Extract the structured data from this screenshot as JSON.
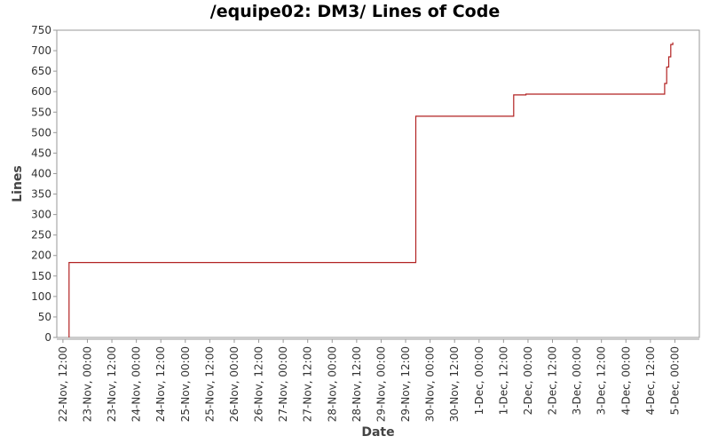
{
  "chart_data": {
    "type": "line",
    "title": "/equipe02: DM3/ Lines of Code",
    "xlabel": "Date",
    "ylabel": "Lines",
    "ylim": [
      0,
      750
    ],
    "xlim": [
      "2008-11-22 09:00",
      "2008-12-05 12:00"
    ],
    "y_ticks": [
      "0",
      "50",
      "100",
      "150",
      "200",
      "250",
      "300",
      "350",
      "400",
      "450",
      "500",
      "550",
      "600",
      "650",
      "700",
      "750"
    ],
    "x_ticks": [
      "22-Nov, 12:00",
      "23-Nov, 00:00",
      "23-Nov, 12:00",
      "24-Nov, 00:00",
      "24-Nov, 12:00",
      "25-Nov, 00:00",
      "25-Nov, 12:00",
      "26-Nov, 00:00",
      "26-Nov, 12:00",
      "27-Nov, 00:00",
      "27-Nov, 12:00",
      "28-Nov, 00:00",
      "28-Nov, 12:00",
      "29-Nov, 00:00",
      "29-Nov, 12:00",
      "30-Nov, 00:00",
      "30-Nov, 12:00",
      "1-Dec, 00:00",
      "1-Dec, 12:00",
      "2-Dec, 00:00",
      "2-Dec, 12:00",
      "3-Dec, 00:00",
      "3-Dec, 12:00",
      "4-Dec, 00:00",
      "4-Dec, 12:00",
      "5-Dec, 00:00"
    ],
    "series": [
      {
        "color": "#b22222",
        "step": true,
        "points": [
          [
            "2008-11-22 15:00",
            0
          ],
          [
            "2008-11-22 15:00",
            183
          ],
          [
            "2008-11-29 17:00",
            183
          ],
          [
            "2008-11-29 17:00",
            540
          ],
          [
            "2008-12-01 17:00",
            540
          ],
          [
            "2008-12-01 17:00",
            592
          ],
          [
            "2008-12-01 23:00",
            592
          ],
          [
            "2008-12-01 23:00",
            594
          ],
          [
            "2008-12-04 19:00",
            594
          ],
          [
            "2008-12-04 19:00",
            620
          ],
          [
            "2008-12-04 20:00",
            620
          ],
          [
            "2008-12-04 20:00",
            660
          ],
          [
            "2008-12-04 21:00",
            660
          ],
          [
            "2008-12-04 21:00",
            685
          ],
          [
            "2008-12-04 22:00",
            685
          ],
          [
            "2008-12-04 22:00",
            715
          ],
          [
            "2008-12-04 23:00",
            715
          ],
          [
            "2008-12-04 23:00",
            720
          ]
        ]
      }
    ],
    "grid": false,
    "colors": {
      "background": "#ffffff",
      "plot_border": "#999999",
      "text": "#333333"
    }
  }
}
